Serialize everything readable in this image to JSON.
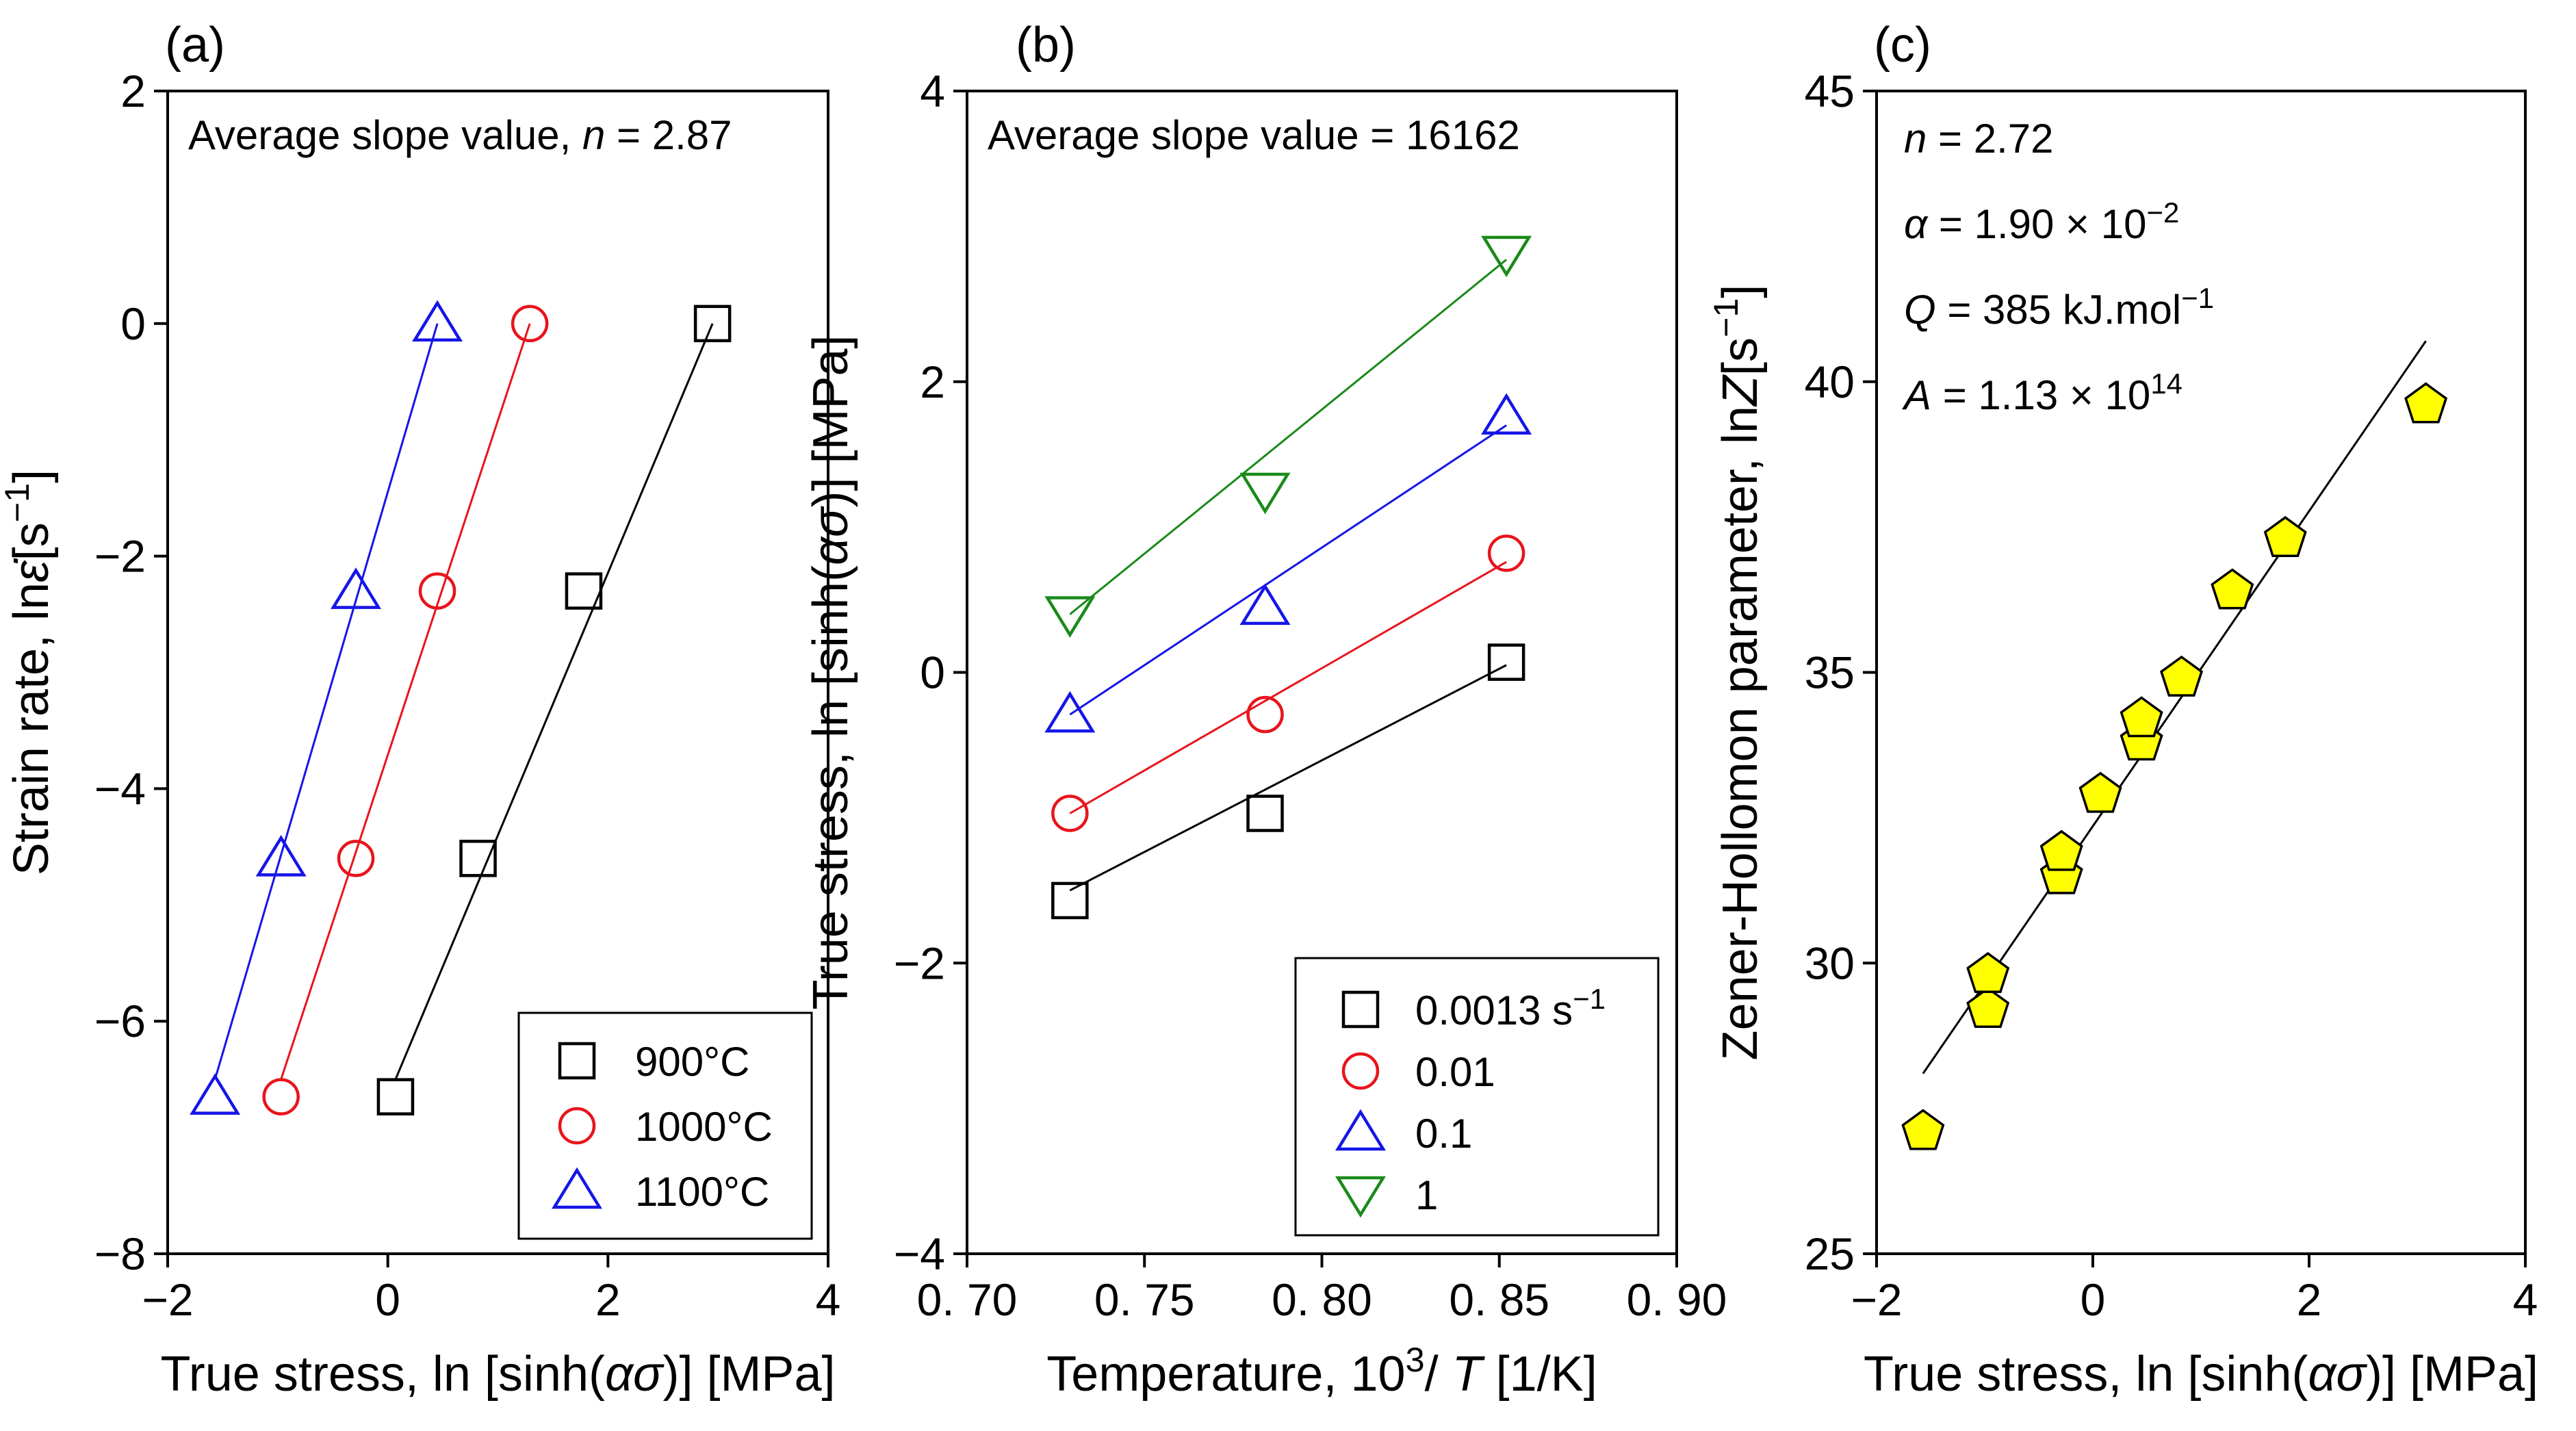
{
  "chart_data": [
    {
      "id": "a",
      "type": "scatter",
      "panel_label": "(a)",
      "xlabel_parts": [
        "True stress, ln [sinh(",
        "ασ",
        ")] [MPa]"
      ],
      "ylabel_parts": [
        "Strain rate, ln",
        "ε̇",
        "[s",
        "−1",
        "]"
      ],
      "xlim": [
        -2,
        4
      ],
      "ylim": [
        -8,
        2
      ],
      "xticks": [
        -2,
        0,
        2,
        4
      ],
      "xtick_labels": [
        "−2",
        "0",
        "2",
        "4"
      ],
      "yticks": [
        -8,
        -6,
        -4,
        -2,
        0,
        2
      ],
      "ytick_labels": [
        "−8",
        "−6",
        "−4",
        "−2",
        "0",
        "2"
      ],
      "annotation_parts": [
        "Average slope value, ",
        "n",
        " = 2.87"
      ],
      "legend_position": "bottom-right",
      "series": [
        {
          "name": "900°C",
          "marker": "square",
          "color": "#000000",
          "x": [
            0.07,
            0.82,
            1.78,
            2.95
          ],
          "y": [
            -6.65,
            -4.6,
            -2.3,
            0.0
          ],
          "fit": [
            [
              0.07,
              -6.5
            ],
            [
              2.95,
              0.0
            ]
          ]
        },
        {
          "name": "1000°C",
          "marker": "circle",
          "color": "#e8141c",
          "x": [
            -0.97,
            -0.29,
            0.45,
            1.29
          ],
          "y": [
            -6.65,
            -4.6,
            -2.3,
            0.0
          ],
          "fit": [
            [
              -0.97,
              -6.5
            ],
            [
              1.29,
              0.0
            ]
          ]
        },
        {
          "name": "1100°C",
          "marker": "triangle-up",
          "color": "#1515e8",
          "x": [
            -1.57,
            -0.97,
            -0.29,
            0.45
          ],
          "y": [
            -6.65,
            -4.6,
            -2.3,
            0.0
          ],
          "fit": [
            [
              -1.57,
              -6.5
            ],
            [
              0.45,
              0.0
            ]
          ]
        }
      ]
    },
    {
      "id": "b",
      "type": "scatter",
      "panel_label": "(b)",
      "xlabel_parts": [
        "Temperature, 10",
        "3",
        "/ ",
        "T",
        " [1/K]"
      ],
      "ylabel_parts": [
        "True stress, ln [sinh(",
        "ασ",
        ")] [MPa]"
      ],
      "xlim": [
        0.7,
        0.9
      ],
      "ylim": [
        -4,
        4
      ],
      "xticks": [
        0.7,
        0.75,
        0.8,
        0.85,
        0.9
      ],
      "xtick_labels": [
        "0. 70",
        "0. 75",
        "0. 80",
        "0. 85",
        "0. 90"
      ],
      "yticks": [
        -4,
        -2,
        0,
        2,
        4
      ],
      "ytick_labels": [
        "−4",
        "−2",
        "0",
        "2",
        "4"
      ],
      "annotation_parts": [
        "Average slope value = 16162"
      ],
      "legend_position": "bottom-right",
      "series": [
        {
          "name": "0.0013 s",
          "name_sup": "−1",
          "marker": "square",
          "color": "#000000",
          "x": [
            0.729,
            0.784,
            0.852
          ],
          "y": [
            -1.57,
            -0.97,
            0.07
          ],
          "fit": [
            [
              0.729,
              -1.5
            ],
            [
              0.852,
              0.05
            ]
          ]
        },
        {
          "name": "0.01",
          "marker": "circle",
          "color": "#e8141c",
          "x": [
            0.729,
            0.784,
            0.852
          ],
          "y": [
            -0.97,
            -0.29,
            0.82
          ],
          "fit": [
            [
              0.729,
              -0.97
            ],
            [
              0.852,
              0.76
            ]
          ]
        },
        {
          "name": "0.1",
          "marker": "triangle-up",
          "color": "#1515e8",
          "x": [
            0.729,
            0.784,
            0.852
          ],
          "y": [
            -0.29,
            0.45,
            1.76
          ],
          "fit": [
            [
              0.729,
              -0.29
            ],
            [
              0.852,
              1.7
            ]
          ]
        },
        {
          "name": "1",
          "marker": "triangle-down",
          "color": "#1a8a1a",
          "x": [
            0.729,
            0.784,
            0.852
          ],
          "y": [
            0.4,
            1.25,
            2.88
          ],
          "fit": [
            [
              0.729,
              0.4
            ],
            [
              0.852,
              2.84
            ]
          ]
        }
      ]
    },
    {
      "id": "c",
      "type": "scatter",
      "panel_label": "(c)",
      "xlabel_parts": [
        "True stress, ln [sinh(",
        "ασ",
        ")] [MPa]"
      ],
      "ylabel_parts": [
        "Zener-Hollomon parameter, ln",
        "Z",
        "[s",
        "−1",
        "]"
      ],
      "xlim": [
        -2,
        4
      ],
      "ylim": [
        25,
        45
      ],
      "xticks": [
        -2,
        0,
        2,
        4
      ],
      "xtick_labels": [
        "−2",
        "0",
        "2",
        "4"
      ],
      "yticks": [
        25,
        30,
        35,
        40,
        45
      ],
      "ytick_labels": [
        "25",
        "30",
        "35",
        "40",
        "45"
      ],
      "annotations": [
        {
          "parts": [
            "n",
            " = 2.72"
          ],
          "italic": [
            true,
            false
          ]
        },
        {
          "parts": [
            "α",
            "  = 1.90 × 10",
            "−2"
          ],
          "italic": [
            true,
            false,
            false
          ]
        },
        {
          "parts": [
            "Q",
            " = 385 kJ.mol",
            "−1"
          ],
          "italic": [
            true,
            false,
            false
          ]
        },
        {
          "parts": [
            "A",
            " = 1.13 × 10",
            "14"
          ],
          "italic": [
            true,
            false,
            false
          ]
        }
      ],
      "series": [
        {
          "name": "lnZ",
          "marker": "pentagon",
          "color": "#ffff00",
          "x": [
            -1.57,
            -0.97,
            -0.97,
            -0.29,
            -0.29,
            0.07,
            0.45,
            0.45,
            0.82,
            1.29,
            1.78,
            3.08
          ],
          "y": [
            27.1,
            29.2,
            29.8,
            31.5,
            31.9,
            32.9,
            33.8,
            34.2,
            34.9,
            36.4,
            37.3,
            39.6
          ],
          "fit": [
            [
              -1.57,
              28.1
            ],
            [
              3.08,
              40.7
            ]
          ]
        }
      ]
    }
  ]
}
